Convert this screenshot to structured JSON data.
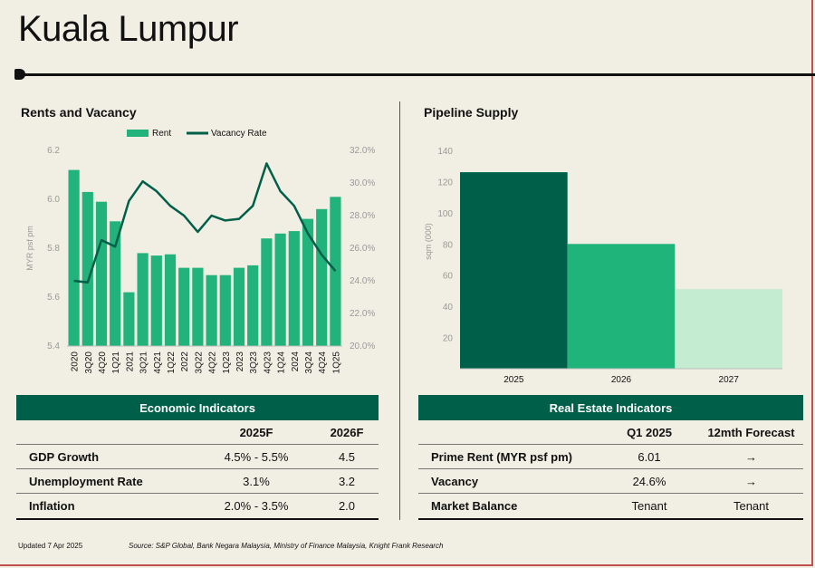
{
  "page": {
    "title": "Kuala Lumpur",
    "updated": "Updated 7 Apr 2025",
    "source": "Source: S&P Global, Bank Negara Malaysia, Ministry of Finance Malaysia, Knight Frank Research"
  },
  "colors": {
    "rent": "#22b37c",
    "vacancy": "#005f48",
    "supply2025": "#005f48",
    "supply2026": "#1fb57a",
    "supply2027": "#c3ecd0",
    "header": "#005f48"
  },
  "rents_section_title": "Rents and Vacancy",
  "supply_section_title": "Pipeline Supply",
  "chart_data": [
    {
      "type": "bar",
      "title": "Rents and Vacancy",
      "legend": {
        "position": "top",
        "entries": [
          "Rent",
          "Vacancy Rate"
        ]
      },
      "ylabel": "MYR psf pm",
      "ylim": [
        5.4,
        6.2
      ],
      "y_ticks": [
        "5.4",
        "5.6",
        "5.8",
        "6.0",
        "6.2"
      ],
      "y2lim": [
        20,
        32
      ],
      "y2_ticks": [
        "20.0%",
        "22.0%",
        "24.0%",
        "26.0%",
        "28.0%",
        "30.0%",
        "32.0%"
      ],
      "categories": [
        "2020",
        "3Q20",
        "4Q20",
        "1Q21",
        "2021",
        "3Q21",
        "4Q21",
        "1Q22",
        "2022",
        "3Q22",
        "4Q22",
        "1Q23",
        "2023",
        "3Q23",
        "4Q23",
        "1Q24",
        "2024",
        "3Q24",
        "4Q24",
        "1Q25"
      ],
      "series": [
        {
          "name": "Rent",
          "type": "bar",
          "axis": "left",
          "values": [
            6.12,
            6.03,
            5.99,
            5.91,
            5.62,
            5.78,
            5.77,
            5.775,
            5.72,
            5.72,
            5.69,
            5.69,
            5.72,
            5.73,
            5.84,
            5.86,
            5.87,
            5.92,
            5.96,
            6.01
          ]
        },
        {
          "name": "Vacancy Rate",
          "type": "line",
          "axis": "right",
          "values": [
            24.0,
            23.9,
            26.5,
            26.1,
            28.9,
            30.1,
            29.5,
            28.6,
            28.0,
            27.0,
            28.0,
            27.7,
            27.8,
            28.6,
            31.2,
            29.5,
            28.6,
            26.9,
            25.6,
            24.6
          ]
        }
      ],
      "grid": false
    },
    {
      "type": "bar",
      "title": "Pipeline Supply",
      "ylabel": "sqm (000)",
      "ylim": [
        0,
        140
      ],
      "y_ticks": [
        "20",
        "40",
        "60",
        "80",
        "100",
        "120",
        "140"
      ],
      "categories": [
        "2025",
        "2026",
        "2027"
      ],
      "values": [
        126,
        80,
        51
      ],
      "grid": false
    }
  ],
  "economic": {
    "title": "Economic Indicators",
    "columns": [
      "2025F",
      "2026F"
    ],
    "rows": [
      {
        "label": "GDP Growth",
        "v1": "4.5% - 5.5%",
        "v2": "4.5"
      },
      {
        "label": "Unemployment Rate",
        "v1": "3.1%",
        "v2": "3.2"
      },
      {
        "label": "Inflation",
        "v1": "2.0% - 3.5%",
        "v2": "2.0"
      }
    ]
  },
  "realestate": {
    "title": "Real Estate Indicators",
    "columns": [
      "Q1 2025",
      "12mth Forecast"
    ],
    "rows": [
      {
        "label": "Prime Rent (MYR psf pm)",
        "v1": "6.01",
        "v2": "→"
      },
      {
        "label": "Vacancy",
        "v1": "24.6%",
        "v2": "→"
      },
      {
        "label": "Market Balance",
        "v1": "Tenant",
        "v2": "Tenant"
      }
    ]
  }
}
